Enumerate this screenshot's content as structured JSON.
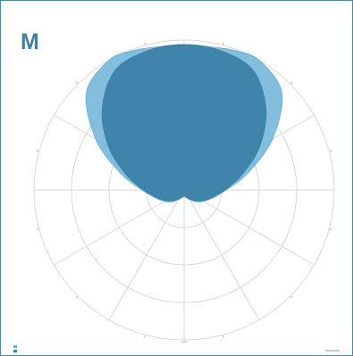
{
  "panel": {
    "label": "M"
  },
  "chart_data": {
    "type": "polar-area",
    "title": "",
    "rings": 4,
    "spokes": 12,
    "grid": true,
    "colors": {
      "grid": "#d8d8d8",
      "axis_marker": "#f4b7a7",
      "series_light": "#6fb3d9",
      "series_dark": "#3c7fa6",
      "frame": "#4a86a8"
    },
    "series": [
      {
        "angle_deg": [
          0,
          15,
          30,
          45,
          60,
          75,
          90,
          105,
          120,
          135,
          150,
          160,
          170,
          180,
          190,
          200,
          210,
          225,
          240,
          255,
          270,
          285,
          300,
          315,
          330,
          345
        ],
        "r": [
          0.04,
          0.05,
          0.07,
          0.11,
          0.15,
          0.2,
          0.28,
          0.44,
          0.68,
          0.92,
          1.0,
          0.99,
          0.97,
          0.97,
          0.97,
          0.99,
          1.0,
          0.92,
          0.68,
          0.44,
          0.28,
          0.2,
          0.15,
          0.11,
          0.07,
          0.05
        ],
        "style": "light"
      },
      {
        "angle_deg": [
          0,
          15,
          30,
          45,
          60,
          75,
          90,
          105,
          120,
          135,
          150,
          165,
          180,
          195,
          210,
          225,
          240,
          255,
          270,
          285,
          300,
          315,
          330,
          345
        ],
        "r": [
          0.04,
          0.05,
          0.07,
          0.1,
          0.14,
          0.19,
          0.27,
          0.4,
          0.58,
          0.77,
          0.92,
          0.96,
          0.97,
          0.96,
          0.92,
          0.77,
          0.58,
          0.4,
          0.27,
          0.19,
          0.14,
          0.1,
          0.07,
          0.05
        ],
        "style": "dark"
      }
    ]
  }
}
